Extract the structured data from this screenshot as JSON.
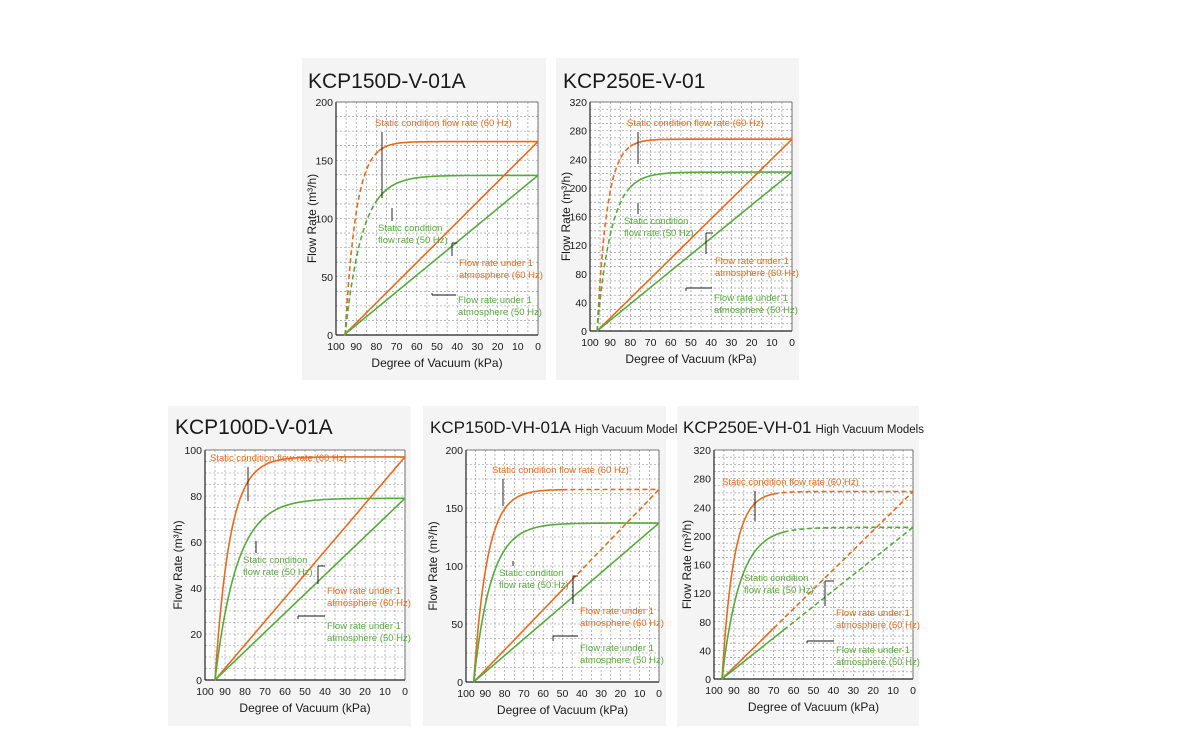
{
  "colors": {
    "orange": "#e86a1e",
    "green": "#56aa3c",
    "grid": "#8c8c8c",
    "panel_bg": "#f3f4f3"
  },
  "chart_data": [
    {
      "type": "line",
      "title": "KCP150D-V-01A",
      "subtitle": "",
      "xlabel": "Degree of Vacuum (kPa)",
      "ylabel": "Flow Rate (m³/h)",
      "xlim": [
        100,
        0
      ],
      "ylim": [
        0,
        200
      ],
      "xticks": [
        100,
        90,
        80,
        70,
        60,
        50,
        40,
        30,
        20,
        10,
        0
      ],
      "xtick_labels": [
        "100",
        "90",
        "80",
        "70",
        "60",
        "50",
        "40",
        "30",
        "20",
        "10",
        "0"
      ],
      "yticks": [
        0,
        50,
        100,
        150,
        200
      ],
      "ytick_labels": [
        "0",
        "50",
        "100",
        "150",
        "200"
      ],
      "series": [
        {
          "name": "Static condition flow rate (60 Hz)",
          "color": "orange",
          "kind": "curve",
          "x0": 95.5,
          "ymax": 166,
          "tau": 5.5,
          "dash_from": 95.5,
          "dash_to": 79
        },
        {
          "name": "Static condition flow rate (50 Hz)",
          "color": "green",
          "kind": "curve",
          "x0": 95.5,
          "ymax": 137,
          "tau": 8.5,
          "dash_from": 95.5,
          "dash_to": 80
        },
        {
          "name": "Flow rate under 1 atmosphere (60 Hz)",
          "color": "orange",
          "kind": "linear",
          "x0": 96,
          "ymax": 166
        },
        {
          "name": "Flow rate under 1 atmosphere (50 Hz)",
          "color": "green",
          "kind": "linear",
          "x0": 96,
          "ymax": 137
        }
      ],
      "annotations": [
        {
          "lines": [
            "Static condition flow rate (60 Hz)"
          ],
          "color": "orange"
        },
        {
          "lines": [
            "Static condition",
            "flow rate (50 Hz)"
          ],
          "color": "green"
        },
        {
          "lines": [
            "Flow rate under 1",
            "atmosphere (60 Hz)"
          ],
          "color": "orange"
        },
        {
          "lines": [
            "Flow rate under 1",
            "atmosphere (50 Hz)"
          ],
          "color": "green"
        }
      ]
    },
    {
      "type": "line",
      "title": "KCP250E-V-01",
      "subtitle": "",
      "xlabel": "Degree of Vacuum (kPa)",
      "ylabel": "Flow Rate (m³/h)",
      "xlim": [
        100,
        0
      ],
      "ylim": [
        0,
        320
      ],
      "xticks": [
        100,
        90,
        80,
        70,
        60,
        50,
        40,
        30,
        20,
        10,
        0
      ],
      "xtick_labels": [
        "100",
        "90",
        "80",
        "70",
        "60",
        "50",
        "40",
        "30",
        "20",
        "10",
        "0"
      ],
      "yticks": [
        0,
        40,
        80,
        120,
        160,
        200,
        240,
        280,
        320
      ],
      "ytick_labels": [
        "0",
        "40",
        "80",
        "120",
        "160",
        "200",
        "240",
        "280",
        "320"
      ],
      "series": [
        {
          "name": "Static condition flow rate (60 Hz)",
          "color": "orange",
          "kind": "curve",
          "x0": 96.5,
          "ymax": 268,
          "tau": 5,
          "dash_from": 96.5,
          "dash_to": 80
        },
        {
          "name": "Static condition flow rate (50 Hz)",
          "color": "green",
          "kind": "curve",
          "x0": 96.5,
          "ymax": 222,
          "tau": 7,
          "dash_from": 96.5,
          "dash_to": 80
        },
        {
          "name": "Flow rate under 1 atmosphere (60 Hz)",
          "color": "orange",
          "kind": "linear",
          "x0": 96.5,
          "ymax": 268
        },
        {
          "name": "Flow rate under 1 atmosphere (50 Hz)",
          "color": "green",
          "kind": "linear",
          "x0": 96.5,
          "ymax": 222
        }
      ],
      "annotations": [
        {
          "lines": [
            "Static condition flow rate (60 Hz)"
          ],
          "color": "orange"
        },
        {
          "lines": [
            "Static condition",
            "flow rate (50 Hz)"
          ],
          "color": "green"
        },
        {
          "lines": [
            "Flow rate under 1",
            "atmosphere (60 Hz)"
          ],
          "color": "orange"
        },
        {
          "lines": [
            "Flow rate under 1",
            "atmosphere (50 Hz)"
          ],
          "color": "green"
        }
      ]
    },
    {
      "type": "line",
      "title": "KCP100D-V-01A",
      "subtitle": "",
      "xlabel": "Degree of Vacuum (kPa)",
      "ylabel": "Flow Rate (m³/h)",
      "xlim": [
        100,
        0
      ],
      "ylim": [
        0,
        100
      ],
      "xticks": [
        100,
        90,
        80,
        70,
        60,
        50,
        40,
        30,
        20,
        10,
        0
      ],
      "xtick_labels": [
        "100",
        "90",
        "80",
        "70",
        "60",
        "50",
        "40",
        "30",
        "20",
        "10",
        "0"
      ],
      "yticks": [
        0,
        20,
        40,
        60,
        80,
        100
      ],
      "ytick_labels": [
        "0",
        "20",
        "40",
        "60",
        "80",
        "100"
      ],
      "series": [
        {
          "name": "Static condition flow rate (60 Hz)",
          "color": "orange",
          "kind": "curve",
          "x0": 95,
          "ymax": 97,
          "tau": 7.5
        },
        {
          "name": "Static condition flow rate (50 Hz)",
          "color": "green",
          "kind": "curve",
          "x0": 95,
          "ymax": 79,
          "tau": 11
        },
        {
          "name": "Flow rate under 1 atmosphere (60 Hz)",
          "color": "orange",
          "kind": "linear",
          "x0": 95,
          "ymax": 97
        },
        {
          "name": "Flow rate under 1 atmosphere (50 Hz)",
          "color": "green",
          "kind": "linear",
          "x0": 95,
          "ymax": 79
        }
      ],
      "annotations": [
        {
          "lines": [
            "Static condition flow rate (60 Hz)"
          ],
          "color": "orange"
        },
        {
          "lines": [
            "Static condition",
            "flow rate (50 Hz)"
          ],
          "color": "green"
        },
        {
          "lines": [
            "Flow rate under 1",
            "atmosphere (60 Hz)"
          ],
          "color": "orange"
        },
        {
          "lines": [
            "Flow rate under 1",
            "atmosphere (50 Hz)"
          ],
          "color": "green"
        }
      ]
    },
    {
      "type": "line",
      "title": "KCP150D-VH-01A",
      "subtitle": "High Vacuum Models",
      "xlabel": "Degree of Vacuum (kPa)",
      "ylabel": "Flow Rate (m³/h)",
      "xlim": [
        100,
        0
      ],
      "ylim": [
        0,
        200
      ],
      "xticks": [
        100,
        90,
        80,
        70,
        60,
        50,
        40,
        30,
        20,
        10,
        0
      ],
      "xtick_labels": [
        "100",
        "90",
        "80",
        "70",
        "60",
        "50",
        "40",
        "30",
        "20",
        "10",
        "0"
      ],
      "yticks": [
        0,
        50,
        100,
        150,
        200
      ],
      "ytick_labels": [
        "0",
        "50",
        "100",
        "150",
        "200"
      ],
      "series": [
        {
          "name": "Static condition flow rate (60 Hz)",
          "color": "orange",
          "kind": "curve",
          "x0": 96,
          "ymax": 166,
          "tau": 7,
          "dash_from": 50,
          "dash_to": 0
        },
        {
          "name": "Static condition flow rate (50 Hz)",
          "color": "green",
          "kind": "curve",
          "x0": 96,
          "ymax": 137,
          "tau": 9
        },
        {
          "name": "Flow rate under 1 atmosphere (60 Hz)",
          "color": "orange",
          "kind": "linear",
          "x0": 96,
          "ymax": 166,
          "dash_from": 45,
          "dash_to": 0
        },
        {
          "name": "Flow rate under 1 atmosphere (50 Hz)",
          "color": "green",
          "kind": "linear",
          "x0": 96,
          "ymax": 137
        }
      ],
      "annotations": [
        {
          "lines": [
            "Static condition flow rate (60 Hz)"
          ],
          "color": "orange"
        },
        {
          "lines": [
            "Static condition",
            "flow rate (50 Hz)"
          ],
          "color": "green"
        },
        {
          "lines": [
            "Flow rate under 1",
            "atmosphere (60 Hz)"
          ],
          "color": "orange"
        },
        {
          "lines": [
            "Flow rate under 1",
            "atmosphere (50 Hz)"
          ],
          "color": "green"
        }
      ]
    },
    {
      "type": "line",
      "title": "KCP250E-VH-01",
      "subtitle": "High Vacuum Models",
      "xlabel": "Degree of Vacuum (kPa)",
      "ylabel": "Flow Rate (m³/h)",
      "xlim": [
        100,
        0
      ],
      "ylim": [
        0,
        320
      ],
      "xticks": [
        100,
        90,
        80,
        70,
        60,
        50,
        40,
        30,
        20,
        10,
        0
      ],
      "xtick_labels": [
        "100",
        "90",
        "80",
        "70",
        "60",
        "50",
        "40",
        "30",
        "20",
        "10",
        "0"
      ],
      "yticks": [
        0,
        40,
        80,
        120,
        160,
        200,
        240,
        280,
        320
      ],
      "ytick_labels": [
        "0",
        "40",
        "80",
        "120",
        "160",
        "200",
        "240",
        "280",
        "320"
      ],
      "series": [
        {
          "name": "Static condition flow rate (60 Hz)",
          "color": "orange",
          "kind": "curve",
          "x0": 96,
          "ymax": 262,
          "tau": 6,
          "dash_from": 70,
          "dash_to": 0
        },
        {
          "name": "Static condition flow rate (50 Hz)",
          "color": "green",
          "kind": "curve",
          "x0": 96,
          "ymax": 212,
          "tau": 9,
          "dash_from": 65,
          "dash_to": 0
        },
        {
          "name": "Flow rate under 1 atmosphere (60 Hz)",
          "color": "orange",
          "kind": "linear",
          "x0": 96,
          "ymax": 262,
          "dash_from": 70,
          "dash_to": 0
        },
        {
          "name": "Flow rate under 1 atmosphere (50 Hz)",
          "color": "green",
          "kind": "linear",
          "x0": 96,
          "ymax": 212,
          "dash_from": 65,
          "dash_to": 0
        }
      ],
      "annotations": [
        {
          "lines": [
            "Static condition flow rate (60 Hz)"
          ],
          "color": "orange"
        },
        {
          "lines": [
            "Static condition",
            "flow rate (50 Hz)"
          ],
          "color": "green"
        },
        {
          "lines": [
            "Flow rate under 1",
            "atmosphere (60 Hz)"
          ],
          "color": "orange"
        },
        {
          "lines": [
            "Flow rate under 1",
            "atmosphere (50 Hz)"
          ],
          "color": "green"
        }
      ]
    }
  ]
}
